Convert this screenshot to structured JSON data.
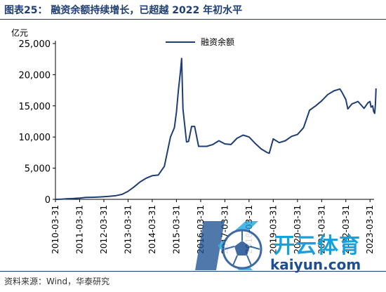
{
  "figure": {
    "title": "图表25： 融资余额持续增长，已超越 2022 年初水平",
    "source": "资料来源：Wind，华泰研究"
  },
  "watermark": {
    "brand_cn": "开云体育",
    "url": "kaiyun.com",
    "logo_icon": "soccer-ball-k-logo-icon"
  },
  "colors": {
    "line": "#1f3e73",
    "title": "#1f3e73"
  },
  "chart_data": {
    "type": "line",
    "title": "",
    "ylabel": "亿元",
    "ylim": [
      0,
      25000
    ],
    "yticks": [
      0,
      5000,
      10000,
      15000,
      20000,
      25000
    ],
    "ytick_labels": [
      "0",
      "5,000",
      "10,000",
      "15,000",
      "20,000",
      "25,000"
    ],
    "xlim": [
      "2010-03-31",
      "2023-05-31"
    ],
    "xticks": [
      "2010-03-31",
      "2011-03-31",
      "2012-03-31",
      "2013-03-31",
      "2014-03-31",
      "2015-03-31",
      "2016-03-31",
      "2017-03-31",
      "2018-03-31",
      "2019-03-31",
      "2020-03-31",
      "2021-03-31",
      "2022-03-31",
      "2023-03-31"
    ],
    "grid": false,
    "legend": "top-center",
    "series": [
      {
        "name": "融资余额",
        "points": [
          [
            "2010-03-31",
            0
          ],
          [
            "2010-06-30",
            30
          ],
          [
            "2010-09-30",
            100
          ],
          [
            "2010-12-31",
            130
          ],
          [
            "2011-03-31",
            200
          ],
          [
            "2011-06-30",
            300
          ],
          [
            "2011-09-30",
            330
          ],
          [
            "2011-12-31",
            370
          ],
          [
            "2012-03-31",
            430
          ],
          [
            "2012-06-30",
            500
          ],
          [
            "2012-09-30",
            600
          ],
          [
            "2012-12-31",
            800
          ],
          [
            "2013-03-31",
            1300
          ],
          [
            "2013-06-30",
            2000
          ],
          [
            "2013-09-30",
            2800
          ],
          [
            "2013-12-31",
            3400
          ],
          [
            "2014-03-31",
            3800
          ],
          [
            "2014-06-30",
            3900
          ],
          [
            "2014-09-30",
            5300
          ],
          [
            "2014-12-31",
            10000
          ],
          [
            "2015-02-28",
            11500
          ],
          [
            "2015-03-31",
            14000
          ],
          [
            "2015-04-30",
            17500
          ],
          [
            "2015-05-31",
            20500
          ],
          [
            "2015-06-18",
            22600
          ],
          [
            "2015-07-08",
            14500
          ],
          [
            "2015-08-31",
            9200
          ],
          [
            "2015-09-30",
            9300
          ],
          [
            "2015-11-15",
            11700
          ],
          [
            "2015-12-31",
            11700
          ],
          [
            "2016-02-29",
            8500
          ],
          [
            "2016-06-30",
            8500
          ],
          [
            "2016-09-30",
            8800
          ],
          [
            "2016-12-31",
            9400
          ],
          [
            "2017-03-31",
            8900
          ],
          [
            "2017-06-30",
            8800
          ],
          [
            "2017-09-30",
            9800
          ],
          [
            "2017-12-31",
            10300
          ],
          [
            "2018-03-31",
            10000
          ],
          [
            "2018-06-30",
            9000
          ],
          [
            "2018-09-30",
            8100
          ],
          [
            "2018-12-31",
            7500
          ],
          [
            "2019-01-31",
            7400
          ],
          [
            "2019-03-31",
            9700
          ],
          [
            "2019-06-30",
            9100
          ],
          [
            "2019-09-30",
            9400
          ],
          [
            "2019-12-31",
            10100
          ],
          [
            "2020-03-31",
            10400
          ],
          [
            "2020-06-30",
            11500
          ],
          [
            "2020-09-30",
            14300
          ],
          [
            "2020-12-31",
            15000
          ],
          [
            "2021-03-31",
            15800
          ],
          [
            "2021-06-30",
            16800
          ],
          [
            "2021-09-30",
            17400
          ],
          [
            "2021-12-31",
            17700
          ],
          [
            "2022-01-31",
            17200
          ],
          [
            "2022-03-31",
            16000
          ],
          [
            "2022-04-30",
            14500
          ],
          [
            "2022-06-30",
            15300
          ],
          [
            "2022-09-30",
            15700
          ],
          [
            "2022-12-31",
            14600
          ],
          [
            "2023-02-28",
            15500
          ],
          [
            "2023-03-31",
            15700
          ],
          [
            "2023-04-15",
            14800
          ],
          [
            "2023-05-10",
            15000
          ],
          [
            "2023-05-25",
            14100
          ],
          [
            "2023-06-10",
            13800
          ],
          [
            "2023-06-20",
            15200
          ],
          [
            "2023-06-30",
            17800
          ]
        ]
      }
    ]
  }
}
